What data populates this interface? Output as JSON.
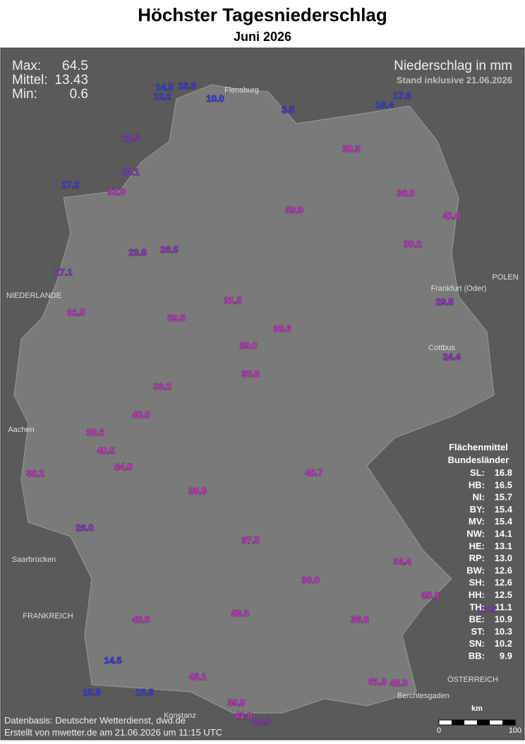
{
  "header": {
    "title": "Höchster Tagesniederschlag",
    "subtitle": "Juni 2026"
  },
  "stats": [
    {
      "label": "Max:",
      "value": "64.5"
    },
    {
      "label": "Mittel:",
      "value": "13.43"
    },
    {
      "label": "Min:",
      "value": "0.6"
    }
  ],
  "legend": {
    "title": "Niederschlag in mm",
    "stand": "Stand inklusive 21.06.2026"
  },
  "regional_means": {
    "title": "Flächenmittel",
    "subtitle": "Bundesländer",
    "rows": [
      [
        "SL:",
        "16.8"
      ],
      [
        "HB:",
        "16.5"
      ],
      [
        "NI:",
        "15.7"
      ],
      [
        "BY:",
        "15.4"
      ],
      [
        "MV:",
        "15.4"
      ],
      [
        "NW:",
        "14.1"
      ],
      [
        "HE:",
        "13.1"
      ],
      [
        "RP:",
        "13.0"
      ],
      [
        "BW:",
        "12.6"
      ],
      [
        "SH:",
        "12.6"
      ],
      [
        "HH:",
        "12.5"
      ],
      [
        "TH:",
        "11.1"
      ],
      [
        "BE:",
        "10.9"
      ],
      [
        "ST:",
        "10.3"
      ],
      [
        "SN:",
        "10.2"
      ],
      [
        "BB:",
        "9.9"
      ]
    ]
  },
  "places": [
    "Flensburg",
    "NIEDERLANDE",
    "POLEN",
    "Frankfurt (Oder)",
    "Cottbus",
    "Aachen",
    "FRANKREICH",
    "ÖSTERREICH",
    "Konstanz",
    "Berchtesgaden",
    "Saarbrücken"
  ],
  "stations": [
    "14.5",
    "15.3",
    "12.2",
    "10.0",
    "3.5",
    "17.6",
    "16.4",
    "22.5",
    "30.3",
    "24.1",
    "17.2",
    "32.0",
    "36.0",
    "41.0",
    "59.9",
    "30.2",
    "26.5",
    "23.8",
    "27.1",
    "29.8",
    "31.5",
    "31.5",
    "39.5",
    "38.6",
    "39.0",
    "30.8",
    "24.4",
    "33.2",
    "40.0",
    "30.6",
    "40.5",
    "64.5",
    "33.2",
    "48.7",
    "39.8",
    "26.0",
    "37.5",
    "34.4",
    "36.0",
    "35.0",
    "43.0",
    "43.3",
    "36.8",
    "46.1",
    "61.3",
    "43.9",
    "39.9",
    "41.0",
    "20.5",
    "14.5",
    "15.5",
    "15.8",
    "27.9"
  ],
  "scale": {
    "unit": "km",
    "start": "0",
    "end": "100"
  },
  "footer": {
    "source": "Datenbasis: Deutscher Wetterdienst, dwd.de",
    "created": "Erstellt von mwetter.de am 21.06.2026 um 11:15 UTC"
  }
}
